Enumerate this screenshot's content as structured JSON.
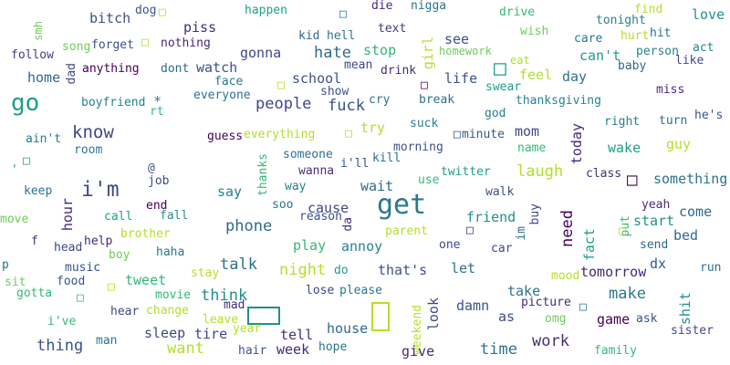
{
  "cloud": {
    "words": [
      {
        "t": "bitch",
        "c": "#3b528b"
      },
      {
        "t": "dog",
        "c": "#38588c"
      },
      {
        "t": "piss",
        "c": "#472d7b"
      },
      {
        "t": "happen",
        "c": "#1f9e89"
      },
      {
        "t": "die",
        "c": "#482878"
      },
      {
        "t": "nigga",
        "c": "#2a788e"
      },
      {
        "t": "drive",
        "c": "#35b779"
      },
      {
        "t": "find",
        "c": "#b5de2b"
      },
      {
        "t": "tonight",
        "c": "#26828e"
      },
      {
        "t": "love",
        "c": "#21918c"
      },
      {
        "t": "smh",
        "c": "#6ece58"
      },
      {
        "t": "song",
        "c": "#6ece58"
      },
      {
        "t": "forget",
        "c": "#3b528b"
      },
      {
        "t": "nothing",
        "c": "#482878"
      },
      {
        "t": "kid",
        "c": "#31688e"
      },
      {
        "t": "hell",
        "c": "#2a788e"
      },
      {
        "t": "text",
        "c": "#443983"
      },
      {
        "t": "wish",
        "c": "#6ece58"
      },
      {
        "t": "care",
        "c": "#2a788e"
      },
      {
        "t": "hurt",
        "c": "#b5de2b"
      },
      {
        "t": "hit",
        "c": "#2c728e"
      },
      {
        "t": "follow",
        "c": "#443983"
      },
      {
        "t": "dad",
        "c": "#3e4989"
      },
      {
        "t": "anything",
        "c": "#440154"
      },
      {
        "t": "gonna",
        "c": "#3e4989"
      },
      {
        "t": "hate",
        "c": "#31688e"
      },
      {
        "t": "stop",
        "c": "#35b779"
      },
      {
        "t": "girl",
        "c": "#b5de2b"
      },
      {
        "t": "see",
        "c": "#3b528b"
      },
      {
        "t": "homework",
        "c": "#6ece58"
      },
      {
        "t": "eat",
        "c": "#b5de2b"
      },
      {
        "t": "can't",
        "c": "#1f9e89"
      },
      {
        "t": "person",
        "c": "#26828e"
      },
      {
        "t": "act",
        "c": "#26828e"
      },
      {
        "t": "like",
        "c": "#3e4989"
      },
      {
        "t": "home",
        "c": "#31688e"
      },
      {
        "t": "go",
        "c": "#1f9e89"
      },
      {
        "t": "dont",
        "c": "#31688e"
      },
      {
        "t": "watch",
        "c": "#3b528b"
      },
      {
        "t": "school",
        "c": "#3b528b"
      },
      {
        "t": "mean",
        "c": "#3e4989"
      },
      {
        "t": "drink",
        "c": "#472d7b"
      },
      {
        "t": "life",
        "c": "#3b528b"
      },
      {
        "t": "feel",
        "c": "#b5de2b"
      },
      {
        "t": "day",
        "c": "#2c728e"
      },
      {
        "t": "baby",
        "c": "#31688e"
      },
      {
        "t": "face",
        "c": "#2a788e"
      },
      {
        "t": "show",
        "c": "#3b528b"
      },
      {
        "t": "swear",
        "c": "#1f9e89"
      },
      {
        "t": "thanksgiving",
        "c": "#26828e"
      },
      {
        "t": "miss",
        "c": "#472d7b"
      },
      {
        "t": "boyfriend",
        "c": "#26828e"
      },
      {
        "t": "everyone",
        "c": "#2c728e"
      },
      {
        "t": "people",
        "c": "#3e4989"
      },
      {
        "t": "fuck",
        "c": "#3b528b"
      },
      {
        "t": "cry",
        "c": "#2c728e"
      },
      {
        "t": "break",
        "c": "#2c728e"
      },
      {
        "t": "god",
        "c": "#26828e"
      },
      {
        "t": "rt",
        "c": "#35b779"
      },
      {
        "t": "know",
        "c": "#3e4989"
      },
      {
        "t": "try",
        "c": "#b5de2b"
      },
      {
        "t": "suck",
        "c": "#26828e"
      },
      {
        "t": "mom",
        "c": "#3e4989"
      },
      {
        "t": "right",
        "c": "#26828e"
      },
      {
        "t": "turn",
        "c": "#2c728e"
      },
      {
        "t": "he's",
        "c": "#3b528b"
      },
      {
        "t": "guess",
        "c": "#440154"
      },
      {
        "t": "everything",
        "c": "#b5de2b"
      },
      {
        "t": "minute",
        "c": "#38588c"
      },
      {
        "t": "today",
        "c": "#482878"
      },
      {
        "t": "name",
        "c": "#35b779"
      },
      {
        "t": "wake",
        "c": "#1f9e89"
      },
      {
        "t": "guy",
        "c": "#b5de2b"
      },
      {
        "t": "ain't",
        "c": "#2a788e"
      },
      {
        "t": "room",
        "c": "#2a788e"
      },
      {
        "t": "morning",
        "c": "#3b528b"
      },
      {
        "t": "someone",
        "c": "#2c728e"
      },
      {
        "t": "kill",
        "c": "#2c728e"
      },
      {
        "t": "i'll",
        "c": "#3b528b"
      },
      {
        "t": "thanks",
        "c": "#35b779"
      },
      {
        "t": "laugh",
        "c": "#b5de2b"
      },
      {
        "t": "class",
        "c": "#472d7b"
      },
      {
        "t": "something",
        "c": "#2c728e"
      },
      {
        "t": "@",
        "c": "#3b528b"
      },
      {
        "t": "job",
        "c": "#3e4989"
      },
      {
        "t": "wanna",
        "c": "#472d7b"
      },
      {
        "t": "twitter",
        "c": "#1f9e89"
      },
      {
        "t": "keep",
        "c": "#2c728e"
      },
      {
        "t": "i'm",
        "c": "#3e4989"
      },
      {
        "t": "say",
        "c": "#26828e"
      },
      {
        "t": "way",
        "c": "#26828e"
      },
      {
        "t": "use",
        "c": "#35b779"
      },
      {
        "t": "wait",
        "c": "#31688e"
      },
      {
        "t": "walk",
        "c": "#3b528b"
      },
      {
        "t": "end",
        "c": "#440154"
      },
      {
        "t": "soo",
        "c": "#2c728e"
      },
      {
        "t": "get",
        "c": "#2a788e"
      },
      {
        "t": "cause",
        "c": "#3e4989"
      },
      {
        "t": "yeah",
        "c": "#472d7b"
      },
      {
        "t": "hour",
        "c": "#482878"
      },
      {
        "t": "call",
        "c": "#1f9e89"
      },
      {
        "t": "fall",
        "c": "#21918c"
      },
      {
        "t": "reason",
        "c": "#3b528b"
      },
      {
        "t": "friend",
        "c": "#21918c"
      },
      {
        "t": "buy",
        "c": "#3e4989"
      },
      {
        "t": "need",
        "c": "#440154"
      },
      {
        "t": "put",
        "c": "#35b779"
      },
      {
        "t": "come",
        "c": "#31688e"
      },
      {
        "t": "start",
        "c": "#21918c"
      },
      {
        "t": "move",
        "c": "#6ece58"
      },
      {
        "t": "phone",
        "c": "#31688e"
      },
      {
        "t": "brother",
        "c": "#b5de2b"
      },
      {
        "t": "da",
        "c": "#472d7b"
      },
      {
        "t": "parent",
        "c": "#b5de2b"
      },
      {
        "t": "im",
        "c": "#2c728e"
      },
      {
        "t": "fact",
        "c": "#1f9e89"
      },
      {
        "t": "bed",
        "c": "#31688e"
      },
      {
        "t": "f",
        "c": "#472d7b"
      },
      {
        "t": "head",
        "c": "#3e4989"
      },
      {
        "t": "help",
        "c": "#482878"
      },
      {
        "t": "haha",
        "c": "#2a788e"
      },
      {
        "t": "play",
        "c": "#35b779"
      },
      {
        "t": "annoy",
        "c": "#26828e"
      },
      {
        "t": "one",
        "c": "#3e4989"
      },
      {
        "t": "car",
        "c": "#3e4989"
      },
      {
        "t": "send",
        "c": "#31688e"
      },
      {
        "t": "boy",
        "c": "#6ece58"
      },
      {
        "t": "p",
        "c": "#2c728e"
      },
      {
        "t": "music",
        "c": "#3b528b"
      },
      {
        "t": "talk",
        "c": "#2c728e"
      },
      {
        "t": "night",
        "c": "#b5de2b"
      },
      {
        "t": "do",
        "c": "#1f9e89"
      },
      {
        "t": "that's",
        "c": "#3b528b"
      },
      {
        "t": "let",
        "c": "#2c728e"
      },
      {
        "t": "tomorrow",
        "c": "#482878"
      },
      {
        "t": "dx",
        "c": "#38588c"
      },
      {
        "t": "run",
        "c": "#2c728e"
      },
      {
        "t": "sit",
        "c": "#6ece58"
      },
      {
        "t": "food",
        "c": "#3b528b"
      },
      {
        "t": "tweet",
        "c": "#35b779"
      },
      {
        "t": "stay",
        "c": "#b5de2b"
      },
      {
        "t": "lose",
        "c": "#3e4989"
      },
      {
        "t": "please",
        "c": "#2a788e"
      },
      {
        "t": "take",
        "c": "#2c728e"
      },
      {
        "t": "mood",
        "c": "#b5de2b"
      },
      {
        "t": "make",
        "c": "#2a788e"
      },
      {
        "t": "gotta",
        "c": "#35b779"
      },
      {
        "t": "movie",
        "c": "#35b779"
      },
      {
        "t": "think",
        "c": "#21918c"
      },
      {
        "t": "mad",
        "c": "#482878"
      },
      {
        "t": "look",
        "c": "#3e4989"
      },
      {
        "t": "picture",
        "c": "#482878"
      },
      {
        "t": "shit",
        "c": "#21918c"
      },
      {
        "t": "hear",
        "c": "#3e4989"
      },
      {
        "t": "change",
        "c": "#b5de2b"
      },
      {
        "t": "damn",
        "c": "#3b528b"
      },
      {
        "t": "as",
        "c": "#3e4989"
      },
      {
        "t": "omg",
        "c": "#6ece58"
      },
      {
        "t": "game",
        "c": "#440154"
      },
      {
        "t": "ask",
        "c": "#3b528b"
      },
      {
        "t": "i've",
        "c": "#35b779"
      },
      {
        "t": "leave",
        "c": "#b5de2b"
      },
      {
        "t": "sleep",
        "c": "#3e4989"
      },
      {
        "t": "tire",
        "c": "#3e4989"
      },
      {
        "t": "year",
        "c": "#b5de2b"
      },
      {
        "t": "tell",
        "c": "#472d7b"
      },
      {
        "t": "house",
        "c": "#31688e"
      },
      {
        "t": "weekend",
        "c": "#b5de2b"
      },
      {
        "t": "sister",
        "c": "#3e4989"
      },
      {
        "t": "man",
        "c": "#2a788e"
      },
      {
        "t": "thing",
        "c": "#3b528b"
      },
      {
        "t": "want",
        "c": "#b5de2b"
      },
      {
        "t": "hair",
        "c": "#3b528b"
      },
      {
        "t": "week",
        "c": "#482878"
      },
      {
        "t": "hope",
        "c": "#2c728e"
      },
      {
        "t": "give",
        "c": "#482878"
      },
      {
        "t": "time",
        "c": "#2c728e"
      },
      {
        "t": "work",
        "c": "#472d7b"
      },
      {
        "t": "family",
        "c": "#35b779"
      }
    ],
    "glyphs": [
      {
        "t": "□",
        "c": "#b5de2b"
      },
      {
        "t": "□",
        "c": "#2a788e"
      },
      {
        "t": "□",
        "c": "#b5de2b"
      },
      {
        "t": "□",
        "c": "#1f9e89"
      },
      {
        "t": "□",
        "c": "#b5de2b"
      },
      {
        "t": "□",
        "c": "#440154"
      },
      {
        "t": "*",
        "c": "#26828e"
      },
      {
        "t": "□",
        "c": "#b5de2b"
      },
      {
        "t": "□",
        "c": "#3b528b"
      },
      {
        "t": "□",
        "c": "#1f9e89"
      },
      {
        "t": "'",
        "c": "#1f9e89"
      },
      {
        "t": "□",
        "c": "#440154"
      },
      {
        "t": "□",
        "c": "#b5de2b"
      },
      {
        "t": "□",
        "c": "#472d7b"
      },
      {
        "t": "□",
        "c": "#35b779"
      },
      {
        "t": "□",
        "c": "#b5de2b"
      },
      {
        "t": "□",
        "c": "#2a788e"
      }
    ],
    "boxes": [
      {
        "c": "#21918c"
      },
      {
        "c": "#b5de2b"
      }
    ]
  }
}
